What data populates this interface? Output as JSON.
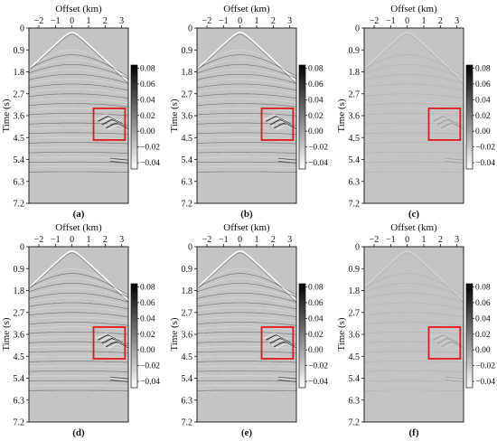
{
  "colors": {
    "background_gray": "#c4c4c4",
    "highlight_box": "#e0191f",
    "axis": "#111111"
  },
  "chart_data": [
    {
      "type": "heatmap",
      "panel_label": "(a)",
      "xlabel": "Offset (km)",
      "ylabel": "Time (s)",
      "xlim": [
        -2.6,
        3.4
      ],
      "ylim": [
        0,
        7.2
      ],
      "xticks": [
        -2,
        -1,
        0,
        1,
        2,
        3
      ],
      "xtick_labels": [
        "−2",
        "−1",
        "0",
        "1",
        "2",
        "3"
      ],
      "yticks": [
        0,
        0.9,
        1.8,
        2.7,
        3.6,
        4.5,
        5.4,
        6.3,
        7.2
      ],
      "ytick_labels": [
        "0",
        "0.9",
        "1.8",
        "2.7",
        "3.6",
        "4.5",
        "5.4",
        "6.3",
        "7.2"
      ],
      "colorbar": {
        "min": -0.048,
        "max": 0.084,
        "ticks": [
          0.08,
          0.06,
          0.04,
          0.02,
          0.0,
          -0.02,
          -0.04
        ],
        "tick_labels": [
          "0.08",
          "0.06",
          "0.04",
          "0.02",
          "0.00",
          "−0.02",
          "−0.04"
        ]
      },
      "highlight_box": {
        "x_range": [
          1.3,
          3.2
        ],
        "y_range": [
          3.3,
          4.6
        ]
      },
      "event_strength": 1.0
    },
    {
      "type": "heatmap",
      "panel_label": "(b)",
      "xlabel": "Offset (km)",
      "ylabel": "Time (s)",
      "xlim": [
        -2.6,
        3.4
      ],
      "ylim": [
        0,
        7.2
      ],
      "xticks": [
        -2,
        -1,
        0,
        1,
        2,
        3
      ],
      "xtick_labels": [
        "−2",
        "−1",
        "0",
        "1",
        "2",
        "3"
      ],
      "yticks": [
        0,
        0.9,
        1.8,
        2.7,
        3.6,
        4.5,
        5.4,
        6.3,
        7.2
      ],
      "ytick_labels": [
        "0",
        "0.9",
        "1.8",
        "2.7",
        "3.6",
        "4.5",
        "5.4",
        "6.3",
        "7.2"
      ],
      "colorbar": {
        "min": -0.048,
        "max": 0.084,
        "ticks": [
          0.08,
          0.06,
          0.04,
          0.02,
          0.0,
          -0.02,
          -0.04
        ],
        "tick_labels": [
          "0.08",
          "0.06",
          "0.04",
          "0.02",
          "0.00",
          "−0.02",
          "−0.04"
        ]
      },
      "highlight_box": {
        "x_range": [
          1.3,
          3.2
        ],
        "y_range": [
          3.3,
          4.6
        ]
      },
      "event_strength": 0.95
    },
    {
      "type": "heatmap",
      "panel_label": "(c)",
      "xlabel": "Offset (km)",
      "ylabel": "Time (s)",
      "xlim": [
        -2.6,
        3.4
      ],
      "ylim": [
        0,
        7.2
      ],
      "xticks": [
        -2,
        -1,
        0,
        1,
        2,
        3
      ],
      "xtick_labels": [
        "−2",
        "−1",
        "0",
        "1",
        "2",
        "3"
      ],
      "yticks": [
        0,
        0.9,
        1.8,
        2.7,
        3.6,
        4.5,
        5.4,
        6.3,
        7.2
      ],
      "ytick_labels": [
        "0",
        "0.9",
        "1.8",
        "2.7",
        "3.6",
        "4.5",
        "5.4",
        "6.3",
        "7.2"
      ],
      "colorbar": {
        "min": -0.048,
        "max": 0.084,
        "ticks": [
          0.08,
          0.06,
          0.04,
          0.02,
          0.0,
          -0.02,
          -0.04
        ],
        "tick_labels": [
          "0.08",
          "0.06",
          "0.04",
          "0.02",
          "0.00",
          "−0.02",
          "−0.04"
        ]
      },
      "highlight_box": {
        "x_range": [
          1.3,
          3.2
        ],
        "y_range": [
          3.3,
          4.6
        ]
      },
      "event_strength": 0.12
    },
    {
      "type": "heatmap",
      "panel_label": "(d)",
      "xlabel": "Offset (km)",
      "ylabel": "Time (s)",
      "xlim": [
        -2.6,
        3.4
      ],
      "ylim": [
        0,
        7.2
      ],
      "xticks": [
        -2,
        -1,
        0,
        1,
        2,
        3
      ],
      "xtick_labels": [
        "−2",
        "−1",
        "0",
        "1",
        "2",
        "3"
      ],
      "yticks": [
        0,
        0.9,
        1.8,
        2.7,
        3.6,
        4.5,
        5.4,
        6.3,
        7.2
      ],
      "ytick_labels": [
        "0",
        "0.9",
        "1.8",
        "2.7",
        "3.6",
        "4.5",
        "5.4",
        "6.3",
        "7.2"
      ],
      "colorbar": {
        "min": -0.048,
        "max": 0.084,
        "ticks": [
          0.08,
          0.06,
          0.04,
          0.02,
          0.0,
          -0.02,
          -0.04
        ],
        "tick_labels": [
          "0.08",
          "0.06",
          "0.04",
          "0.02",
          "0.00",
          "−0.02",
          "−0.04"
        ]
      },
      "highlight_box": {
        "x_range": [
          1.3,
          3.2
        ],
        "y_range": [
          3.3,
          4.6
        ]
      },
      "event_strength": 1.0
    },
    {
      "type": "heatmap",
      "panel_label": "(e)",
      "xlabel": "Offset (km)",
      "ylabel": "Time (s)",
      "xlim": [
        -2.6,
        3.4
      ],
      "ylim": [
        0,
        7.2
      ],
      "xticks": [
        -2,
        -1,
        0,
        1,
        2,
        3
      ],
      "xtick_labels": [
        "−2",
        "−1",
        "0",
        "1",
        "2",
        "3"
      ],
      "yticks": [
        0,
        0.9,
        1.8,
        2.7,
        3.6,
        4.5,
        5.4,
        6.3,
        7.2
      ],
      "ytick_labels": [
        "0",
        "0.9",
        "1.8",
        "2.7",
        "3.6",
        "4.5",
        "5.4",
        "6.3",
        "7.2"
      ],
      "colorbar": {
        "min": -0.048,
        "max": 0.084,
        "ticks": [
          0.08,
          0.06,
          0.04,
          0.02,
          0.0,
          -0.02,
          -0.04
        ],
        "tick_labels": [
          "0.08",
          "0.06",
          "0.04",
          "0.02",
          "0.00",
          "−0.02",
          "−0.04"
        ]
      },
      "highlight_box": {
        "x_range": [
          1.3,
          3.2
        ],
        "y_range": [
          3.3,
          4.6
        ]
      },
      "event_strength": 0.97
    },
    {
      "type": "heatmap",
      "panel_label": "(f)",
      "xlabel": "Offset (km)",
      "ylabel": "Time (s)",
      "xlim": [
        -2.6,
        3.4
      ],
      "ylim": [
        0,
        7.2
      ],
      "xticks": [
        -2,
        -1,
        0,
        1,
        2,
        3
      ],
      "xtick_labels": [
        "−2",
        "−1",
        "0",
        "1",
        "2",
        "3"
      ],
      "yticks": [
        0,
        0.9,
        1.8,
        2.7,
        3.6,
        4.5,
        5.4,
        6.3,
        7.2
      ],
      "ytick_labels": [
        "0",
        "0.9",
        "1.8",
        "2.7",
        "3.6",
        "4.5",
        "5.4",
        "6.3",
        "7.2"
      ],
      "colorbar": {
        "min": -0.048,
        "max": 0.084,
        "ticks": [
          0.08,
          0.06,
          0.04,
          0.02,
          0.0,
          -0.02,
          -0.04
        ],
        "tick_labels": [
          "0.08",
          "0.06",
          "0.04",
          "0.02",
          "0.00",
          "−0.02",
          "−0.04"
        ]
      },
      "highlight_box": {
        "x_range": [
          1.3,
          3.2
        ],
        "y_range": [
          3.3,
          4.6
        ]
      },
      "event_strength": 0.1
    }
  ]
}
